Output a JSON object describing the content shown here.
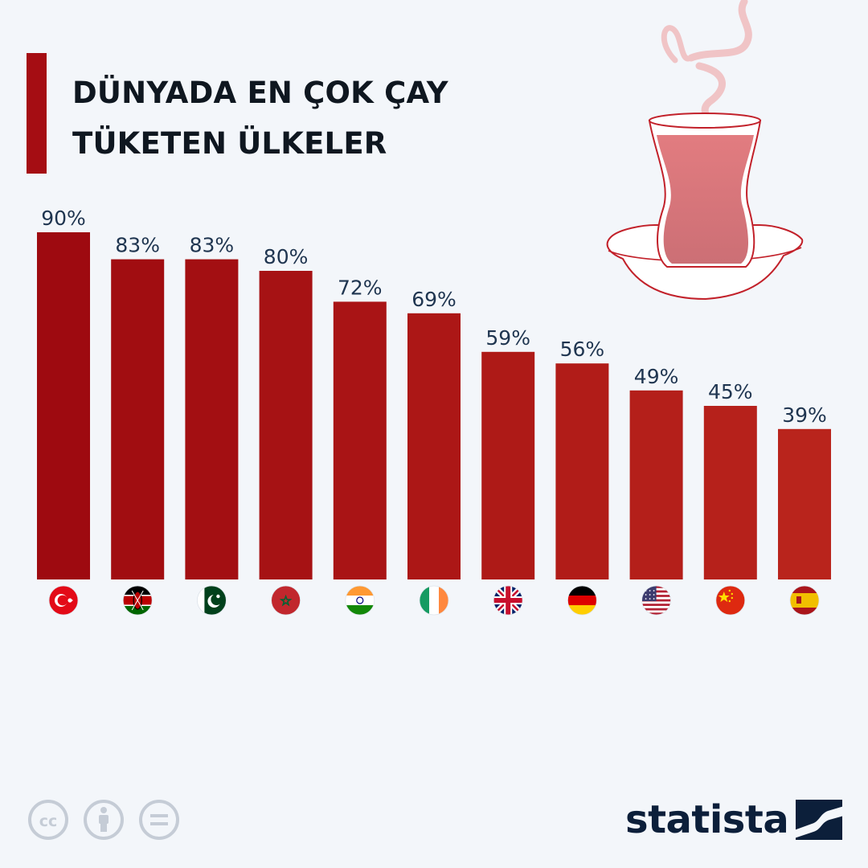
{
  "title": {
    "line1": "DÜNYADA EN ÇOK ÇAY",
    "line2": "TÜKETEN ÜLKELER"
  },
  "chart_data": {
    "type": "bar",
    "categories": [
      "Türkiye",
      "Kenya",
      "Pakistan",
      "Morocco",
      "India",
      "Ireland",
      "United Kingdom",
      "Germany",
      "United States",
      "China",
      "Spain"
    ],
    "flags": [
      "flag-turkey-icon",
      "flag-kenya-icon",
      "flag-pakistan-icon",
      "flag-morocco-icon",
      "flag-india-icon",
      "flag-ireland-icon",
      "flag-uk-icon",
      "flag-germany-icon",
      "flag-usa-icon",
      "flag-china-icon",
      "flag-spain-icon"
    ],
    "values": [
      90,
      83,
      83,
      80,
      72,
      69,
      59,
      56,
      49,
      45,
      39
    ],
    "labels": [
      "90%",
      "83%",
      "83%",
      "80%",
      "72%",
      "69%",
      "59%",
      "56%",
      "49%",
      "45%",
      "39%"
    ],
    "ylim": [
      0,
      90
    ],
    "grid": false,
    "colors": {
      "bar_start": "#9e0a10",
      "bar_end": "#b9241c",
      "label": "#1f3550"
    }
  },
  "brand": {
    "name": "statista"
  },
  "colors": {
    "background": "#f3f6fa",
    "accent": "#a50d13",
    "brand": "#0c1f3a"
  },
  "icons": [
    "cc-icon",
    "person-icon",
    "equal-icon",
    "statista-logo-icon",
    "tea-glass-icon"
  ]
}
